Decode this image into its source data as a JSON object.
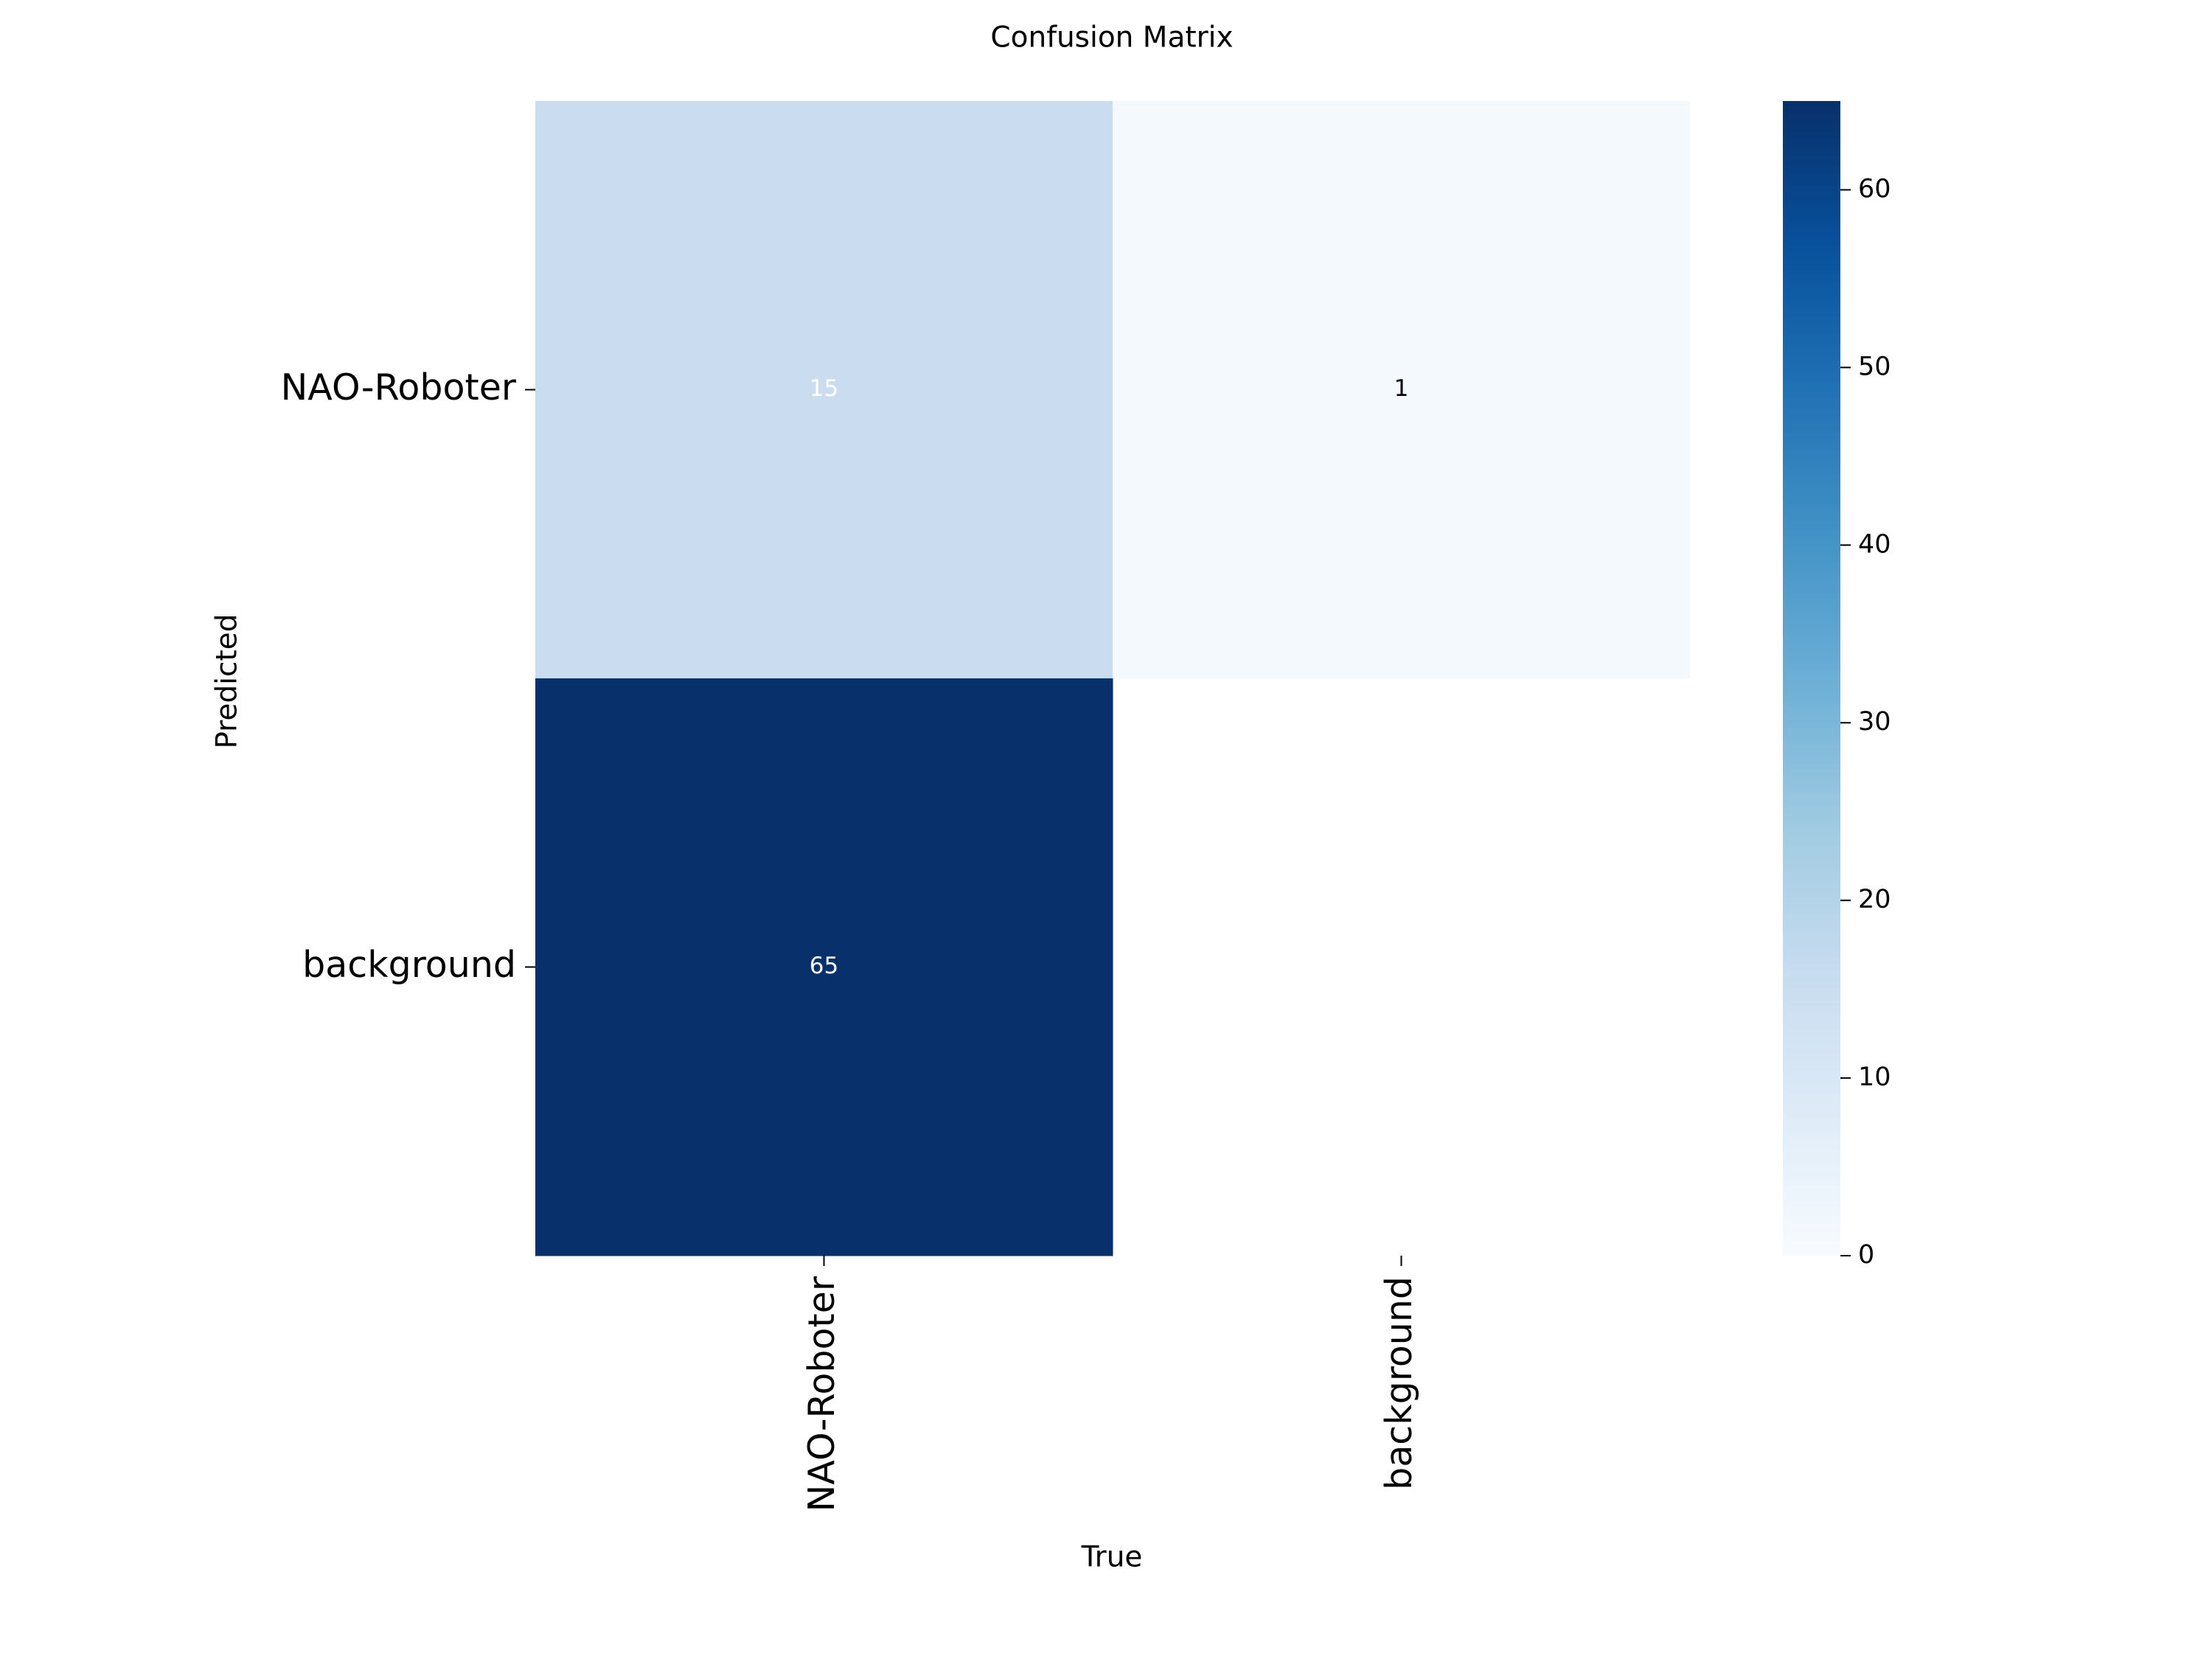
{
  "chart_data": {
    "type": "heatmap",
    "title": "Confusion Matrix",
    "xlabel": "True",
    "ylabel": "Predicted",
    "x_categories": [
      "NAO-Roboter",
      "background"
    ],
    "y_categories": [
      "NAO-Roboter",
      "background"
    ],
    "values": [
      [
        15,
        1
      ],
      [
        65,
        null
      ]
    ],
    "colormap": "Blues",
    "colorbar": {
      "min": 0,
      "max": 65,
      "ticks": [
        0,
        10,
        20,
        30,
        40,
        50,
        60
      ]
    },
    "grid": false,
    "legend": "colorbar-right"
  }
}
